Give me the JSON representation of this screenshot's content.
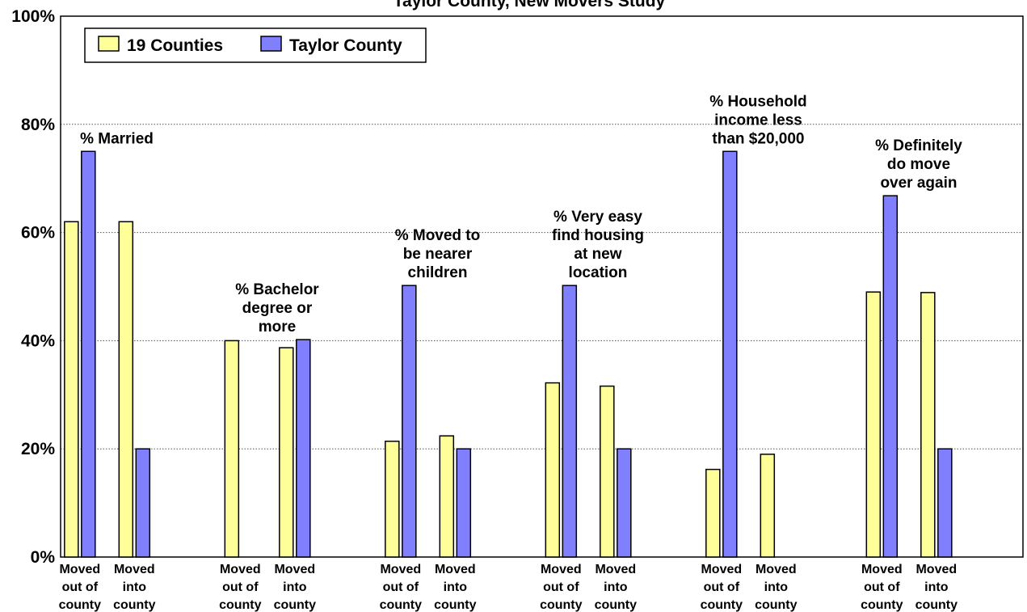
{
  "chart_data": {
    "type": "bar",
    "title": "Taylor County, New Movers Study",
    "ylim": [
      0,
      100
    ],
    "yticks": [
      "0%",
      "20%",
      "40%",
      "60%",
      "80%",
      "100%"
    ],
    "grid": true,
    "legend_position": "top-left",
    "categories": [
      "Moved out of county",
      "Moved into county"
    ],
    "series": [
      {
        "name": "19 Counties",
        "color": "#ffff99"
      },
      {
        "name": "Taylor County",
        "color": "#8080ff"
      }
    ],
    "groups": [
      {
        "label": "% Married",
        "values": {
          "19 Counties": [
            62,
            62
          ],
          "Taylor County": [
            75,
            20
          ]
        }
      },
      {
        "label": "% Bachelor degree or more",
        "values": {
          "19 Counties": [
            40,
            38.7
          ],
          "Taylor County": [
            null,
            40.2
          ]
        }
      },
      {
        "label": "% Moved to be nearer children",
        "values": {
          "19 Counties": [
            21.4,
            22.4
          ],
          "Taylor County": [
            50.2,
            20
          ]
        }
      },
      {
        "label": "% Very easy find housing at new location",
        "values": {
          "19 Counties": [
            32.2,
            31.6
          ],
          "Taylor County": [
            50.2,
            20
          ]
        }
      },
      {
        "label": "% Household income less than $20,000",
        "values": {
          "19 Counties": [
            16.2,
            19
          ],
          "Taylor County": [
            75,
            null
          ]
        }
      },
      {
        "label": "% Definitely do move over again",
        "values": {
          "19 Counties": [
            49,
            48.9
          ],
          "Taylor County": [
            66.8,
            20
          ]
        }
      }
    ]
  },
  "annotations": [
    [
      "% Married"
    ],
    [
      "% Bachelor",
      "degree or",
      "more"
    ],
    [
      "% Moved to",
      "be nearer",
      "children"
    ],
    [
      "% Very easy",
      "find housing",
      "at new",
      "location"
    ],
    [
      "% Household",
      "income less",
      "than $20,000"
    ],
    [
      "% Definitely",
      "do move",
      "over again"
    ]
  ],
  "tick_lines": [
    [
      "Moved",
      "out of",
      "county"
    ],
    [
      "Moved",
      "into",
      "county"
    ]
  ]
}
